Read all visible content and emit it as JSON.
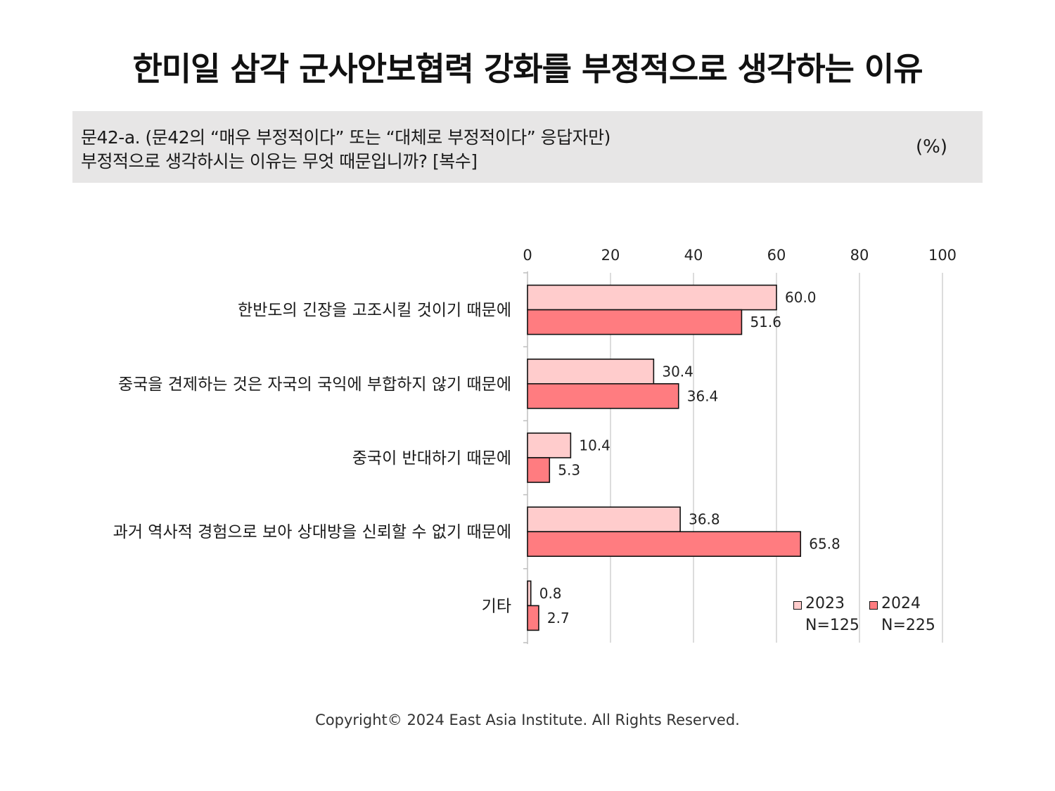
{
  "title": "한미일 삼각 군사안보협력 강화를 부정적으로 생각하는 이유",
  "question": {
    "line1": "문42-a. (문42의 “매우 부정적이다” 또는 “대체로 부정적이다” 응답자만)",
    "line2": "부정적으로 생각하시는 이유는 무엇 때문입니까? [복수]",
    "unit": "(%)"
  },
  "chart_data": {
    "type": "bar",
    "orientation": "horizontal",
    "xlim": [
      0,
      100
    ],
    "ticks": [
      "0",
      "20",
      "40",
      "60",
      "80",
      "100"
    ],
    "tick_values": [
      0,
      20,
      40,
      60,
      80,
      100
    ],
    "grid": true,
    "categories": [
      "한반도의 긴장을 고조시킬 것이기 때문에",
      "중국을 견제하는 것은 자국의 국익에 부합하지 않기 때문에",
      "중국이 반대하기 때문에",
      "과거 역사적 경험으로 보아 상대방을 신뢰할 수 없기 때문에",
      "기타"
    ],
    "series": [
      {
        "name": "2023",
        "sample": "N=125",
        "color": "#ffcccc",
        "values": [
          60.0,
          30.4,
          10.4,
          36.8,
          0.8
        ],
        "labels": [
          "60.0",
          "30.4",
          "10.4",
          "36.8",
          "0.8"
        ]
      },
      {
        "name": "2024",
        "sample": "N=225",
        "color": "#ff7c80",
        "values": [
          51.6,
          36.4,
          5.3,
          65.8,
          2.7
        ],
        "labels": [
          "51.6",
          "36.4",
          "5.3",
          "65.8",
          "2.7"
        ]
      }
    ],
    "legend_position": "bottom-right"
  },
  "footer": "Copyright© 2024 East Asia Institute. All Rights Reserved."
}
